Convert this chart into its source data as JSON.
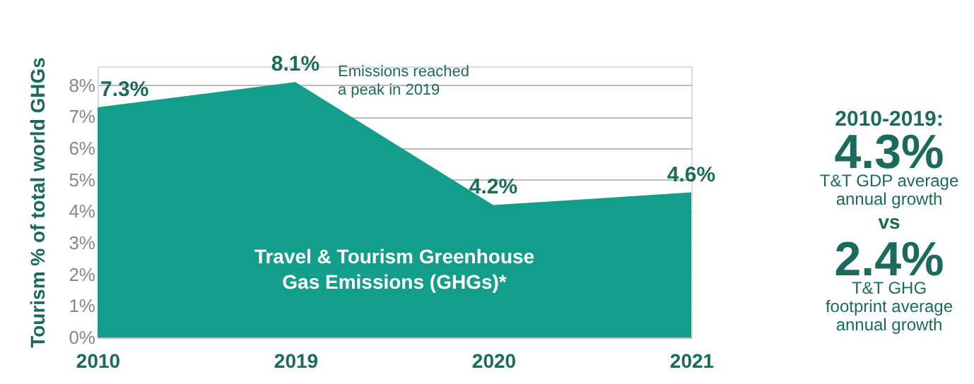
{
  "chart_data": {
    "type": "area",
    "categories": [
      "2010",
      "2019",
      "2020",
      "2021"
    ],
    "values": [
      7.3,
      8.1,
      4.2,
      4.6
    ],
    "value_labels": [
      "7.3%",
      "8.1%",
      "4.2%",
      "4.6%"
    ],
    "color": "#139e8b",
    "ylabel": "Tourism % of total world GHGs",
    "ylim": [
      0,
      8.6
    ],
    "yticks": [
      {
        "value": 0,
        "label": "0%"
      },
      {
        "value": 1,
        "label": "1%"
      },
      {
        "value": 2,
        "label": "2%"
      },
      {
        "value": 3,
        "label": "3%"
      },
      {
        "value": 4,
        "label": "4%"
      },
      {
        "value": 5,
        "label": "5%"
      },
      {
        "value": 6,
        "label": "6%"
      },
      {
        "value": 7,
        "label": "7%"
      },
      {
        "value": 8,
        "label": "8%"
      }
    ],
    "grid": "y",
    "annotations": [
      {
        "text": "Emissions reached\na peak in 2019",
        "x": "2019",
        "y": 8.1
      },
      "Travel & Tourism Greenhouse\nGas Emissions (GHGs)*",
      "2010-2019:",
      "4.3%",
      "T&T GDP average\nannual growth",
      "vs",
      "2.4%",
      "T&T GHG\nfootprint average\nannual growth"
    ]
  }
}
